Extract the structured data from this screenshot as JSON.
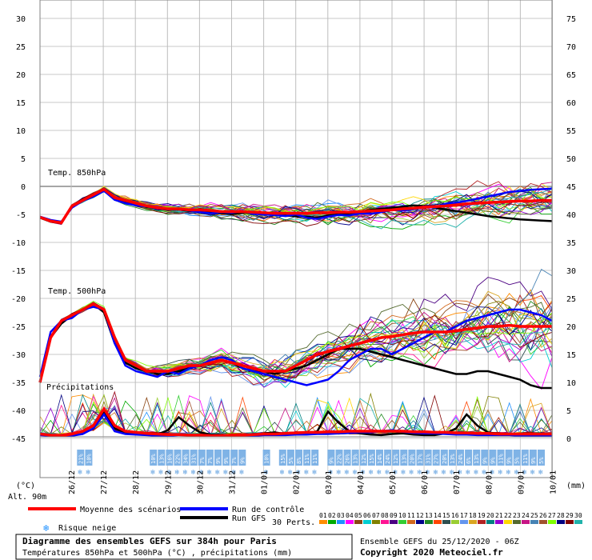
{
  "chart_data": {
    "type": "line",
    "title": "Diagramme des ensembles GEFS sur 384h pour Paris",
    "subtitle": "Températures 850hPa et 500hPa (°C) , précipitations (mm)",
    "run_info": "Ensemble GEFS du 25/12/2020 - 06Z",
    "copyright": "Copyright 2020 Meteociel.fr",
    "left_axis": {
      "unit": "(°C)",
      "ticks": [
        "30",
        "25",
        "20",
        "15",
        "10",
        "5",
        "0",
        "-5",
        "-10",
        "-15",
        "-20",
        "-25",
        "-30",
        "-35",
        "-40",
        "-45"
      ],
      "range": [
        -45,
        30
      ]
    },
    "right_axis": {
      "unit": "(mm)",
      "ticks": [
        "75",
        "70",
        "65",
        "60",
        "55",
        "50",
        "45",
        "40",
        "35",
        "30",
        "25",
        "20",
        "15",
        "10",
        "5",
        "0"
      ],
      "range": [
        0,
        75
      ]
    },
    "altitude": "Alt. 90m",
    "x_dates": [
      "26/12",
      "27/12",
      "28/12",
      "29/12",
      "30/12",
      "31/12",
      "01/01",
      "02/01",
      "03/01",
      "04/01",
      "05/01",
      "06/01",
      "07/01",
      "08/01",
      "09/01",
      "10/01"
    ],
    "labels": {
      "t850": "Temp. 850hPa",
      "t500": "Temp. 500hPa",
      "precip": "Précipitations"
    },
    "snow_risk": [
      {
        "slot": 3,
        "pct": "21%"
      },
      {
        "slot": 4,
        "pct": "10%"
      },
      {
        "slot": 12,
        "pct": "10%"
      },
      {
        "slot": 13,
        "pct": "13%"
      },
      {
        "slot": 14,
        "pct": "16%"
      },
      {
        "slot": 15,
        "pct": "22%"
      },
      {
        "slot": 16,
        "pct": "34%"
      },
      {
        "slot": 17,
        "pct": "31%"
      },
      {
        "slot": 18,
        "pct": "7%"
      },
      {
        "slot": 19,
        "pct": "7%"
      },
      {
        "slot": 20,
        "pct": "9%"
      },
      {
        "slot": 21,
        "pct": "9%"
      },
      {
        "slot": 22,
        "pct": "7%"
      },
      {
        "slot": 23,
        "pct": "9%"
      },
      {
        "slot": 26,
        "pct": "10%"
      },
      {
        "slot": 28,
        "pct": "15%"
      },
      {
        "slot": 29,
        "pct": "5%"
      },
      {
        "slot": 30,
        "pct": "8%"
      },
      {
        "slot": 31,
        "pct": "11%"
      },
      {
        "slot": 32,
        "pct": "11%"
      },
      {
        "slot": 34,
        "pct": "9%"
      },
      {
        "slot": 35,
        "pct": "22%"
      },
      {
        "slot": 36,
        "pct": "26%"
      },
      {
        "slot": 37,
        "pct": "13%"
      },
      {
        "slot": 38,
        "pct": "12%"
      },
      {
        "slot": 39,
        "pct": "15%"
      },
      {
        "slot": 40,
        "pct": "14%"
      },
      {
        "slot": 41,
        "pct": "24%"
      },
      {
        "slot": 42,
        "pct": "12%"
      },
      {
        "slot": 43,
        "pct": "13%"
      },
      {
        "slot": 44,
        "pct": "20%"
      },
      {
        "slot": 45,
        "pct": "17%"
      },
      {
        "slot": 46,
        "pct": "31%"
      },
      {
        "slot": 47,
        "pct": "27%"
      },
      {
        "slot": 48,
        "pct": "20%"
      },
      {
        "slot": 49,
        "pct": "13%"
      },
      {
        "slot": 50,
        "pct": "24%"
      },
      {
        "slot": 51,
        "pct": "6%"
      },
      {
        "slot": 52,
        "pct": "13%"
      },
      {
        "slot": 53,
        "pct": "9%"
      },
      {
        "slot": 54,
        "pct": "9%"
      },
      {
        "slot": 55,
        "pct": "11%"
      },
      {
        "slot": 56,
        "pct": "9%"
      },
      {
        "slot": 57,
        "pct": "5%"
      },
      {
        "slot": 58,
        "pct": "11%"
      },
      {
        "slot": 59,
        "pct": "9%"
      },
      {
        "slot": 60,
        "pct": "5%"
      }
    ],
    "series_mean": {
      "name": "Moyenne des scénarios",
      "color": "#ff0000",
      "t850": [
        -5.5,
        -6.2,
        -6.5,
        -3.5,
        -2.5,
        -1.5,
        -0.5,
        -2.0,
        -2.5,
        -3.0,
        -3.5,
        -3.8,
        -4.0,
        -4.0,
        -4.2,
        -4.2,
        -4.3,
        -4.5,
        -4.5,
        -4.5,
        -4.6,
        -4.7,
        -4.8,
        -4.8,
        -4.8,
        -4.8,
        -4.7,
        -4.7,
        -4.6,
        -4.6,
        -4.5,
        -4.4,
        -4.3,
        -4.2,
        -4.0,
        -3.9,
        -3.7,
        -3.6,
        -3.5,
        -3.3,
        -3.1,
        -3.0,
        -2.9,
        -2.8,
        -2.7,
        -2.6,
        -2.6,
        -2.5,
        -2.5
      ],
      "t500": [
        -35,
        -27,
        -24,
        -23,
        -22,
        -21,
        -22,
        -27,
        -31,
        -32,
        -33,
        -33,
        -33,
        -32.5,
        -32,
        -32,
        -31.5,
        -31,
        -31.5,
        -32,
        -32.5,
        -33,
        -33,
        -33,
        -32,
        -31,
        -30,
        -29.5,
        -29,
        -28.5,
        -28,
        -27.5,
        -27,
        -26.8,
        -26.5,
        -26.2,
        -26,
        -26,
        -26,
        -25.8,
        -25.5,
        -25.3,
        -25,
        -25,
        -24.8,
        -25,
        -25,
        -25,
        -25
      ],
      "precip": [
        0.5,
        0.3,
        0.2,
        0.5,
        1,
        2,
        5,
        2,
        1,
        0.8,
        0.6,
        0.5,
        0.4,
        0.4,
        0.3,
        0.3,
        0.2,
        0.2,
        0.3,
        0.3,
        0.4,
        0.5,
        0.5,
        0.6,
        0.7,
        0.8,
        0.8,
        0.9,
        0.9,
        1.0,
        1.0,
        1.0,
        1.0,
        1.0,
        1.0,
        0.9,
        0.9,
        0.8,
        0.8,
        0.7,
        0.7,
        0.6,
        0.6,
        0.5,
        0.5,
        0.5,
        0.5,
        0.5,
        0.5
      ]
    },
    "series_control": {
      "name": "Run de contrôle",
      "color": "#0000ff",
      "t850": [
        -5.4,
        -6.0,
        -6.3,
        -3.8,
        -2.6,
        -1.8,
        -0.8,
        -2.4,
        -3.0,
        -3.4,
        -3.6,
        -3.9,
        -4.1,
        -4.0,
        -4.3,
        -4.6,
        -4.8,
        -4.6,
        -4.7,
        -4.4,
        -4.9,
        -5.0,
        -5.1,
        -5.3,
        -5.0,
        -5.6,
        -5.8,
        -5.4,
        -5.1,
        -5.2,
        -4.8,
        -4.9,
        -4.6,
        -4.2,
        -4.3,
        -4.1,
        -3.6,
        -3.8,
        -3.1,
        -2.9,
        -2.6,
        -2.2,
        -1.8,
        -1.4,
        -1.0,
        -0.8,
        -0.6,
        -0.5,
        -0.4
      ],
      "t500": [
        -34,
        -26,
        -24,
        -23.5,
        -22,
        -21.5,
        -22,
        -28,
        -32,
        -33,
        -33.5,
        -34,
        -33,
        -33.5,
        -32.5,
        -32,
        -31,
        -30.5,
        -31,
        -32.5,
        -33,
        -33.5,
        -34,
        -34.5,
        -35,
        -35.5,
        -35,
        -34.5,
        -33,
        -31,
        -30,
        -29,
        -29,
        -30,
        -29,
        -28,
        -27,
        -26,
        -26,
        -25,
        -24,
        -23.5,
        -23,
        -22.5,
        -22,
        -22,
        -22.5,
        -23,
        -24
      ],
      "precip": [
        0.3,
        0.2,
        0.1,
        0.2,
        0.5,
        1.5,
        4,
        1,
        0.5,
        0.4,
        0.3,
        0.2,
        0.2,
        0.3,
        0.3,
        0.2,
        0.2,
        0.1,
        0.1,
        0.2,
        0.2,
        0.3,
        0.3,
        0.3,
        0.4,
        0.4,
        0.5,
        0.5,
        0.6,
        0.7,
        0.8,
        0.8,
        1.0,
        1.2,
        0.9,
        0.7,
        0.6,
        0.6,
        0.5,
        0.4,
        0.4,
        0.3,
        0.3,
        0.3,
        0.3,
        0.2,
        0.2,
        0.2,
        0.2
      ]
    },
    "series_gfs": {
      "name": "Run GFS",
      "color": "#000000",
      "t850": [
        -5.6,
        -6.3,
        -6.6,
        -3.6,
        -2.4,
        -1.6,
        -0.6,
        -2.2,
        -2.7,
        -3.2,
        -3.7,
        -3.9,
        -4.2,
        -4.1,
        -4.4,
        -4.4,
        -4.7,
        -4.8,
        -4.9,
        -4.7,
        -4.6,
        -4.9,
        -5.1,
        -5.2,
        -5.3,
        -5.4,
        -5.6,
        -5.2,
        -5.0,
        -4.8,
        -4.5,
        -4.2,
        -4.0,
        -3.8,
        -3.6,
        -3.4,
        -3.5,
        -3.8,
        -4.1,
        -4.4,
        -4.7,
        -5.0,
        -5.3,
        -5.5,
        -5.7,
        -5.9,
        -6.0,
        -6.1,
        -6.2
      ],
      "t500": [
        -35,
        -27,
        -24.5,
        -23,
        -22,
        -21,
        -22.5,
        -28,
        -31.5,
        -32.5,
        -33,
        -33.5,
        -33.5,
        -33,
        -32.5,
        -32,
        -31.5,
        -31,
        -31.5,
        -32.5,
        -33,
        -33,
        -33.5,
        -33,
        -32.5,
        -32,
        -31,
        -30,
        -29,
        -29,
        -29,
        -29.5,
        -30,
        -30.5,
        -31,
        -31.5,
        -32,
        -32.5,
        -33,
        -33.5,
        -33.5,
        -33,
        -33,
        -33.5,
        -34,
        -34.5,
        -35.5,
        -36,
        -36
      ],
      "precip": [
        0.4,
        0.3,
        0.2,
        0.4,
        1,
        2,
        4.5,
        1.5,
        0.8,
        0.6,
        0.5,
        0.4,
        1.2,
        3.5,
        2.0,
        0.8,
        0.4,
        0.3,
        0.2,
        0.3,
        0.4,
        0.6,
        0.8,
        0.5,
        0.4,
        0.5,
        1.0,
        4.5,
        2.5,
        1.0,
        0.6,
        0.4,
        0.3,
        0.5,
        0.6,
        0.4,
        0.3,
        0.3,
        0.6,
        1.5,
        4.0,
        2.0,
        0.8,
        0.5,
        0.4,
        0.3,
        0.3,
        0.3,
        0.3
      ]
    },
    "perturbations": {
      "label": "30 Perts.",
      "count": 30,
      "colors": [
        "#ff8c00",
        "#00aa00",
        "#1e90ff",
        "#ff00ff",
        "#8b4513",
        "#00ced1",
        "#808000",
        "#ff1493",
        "#4b0082",
        "#32cd32",
        "#d2691e",
        "#00008b",
        "#228b22",
        "#ff4500",
        "#2f4f4f",
        "#9acd32",
        "#6495ed",
        "#daa520",
        "#b22222",
        "#008080",
        "#9400d3",
        "#ffd700",
        "#556b2f",
        "#c71585",
        "#4682b4",
        "#a0522d",
        "#7fff00",
        "#000080",
        "#800000",
        "#20b2aa"
      ]
    },
    "legend": {
      "snow": "Risque neige"
    }
  }
}
